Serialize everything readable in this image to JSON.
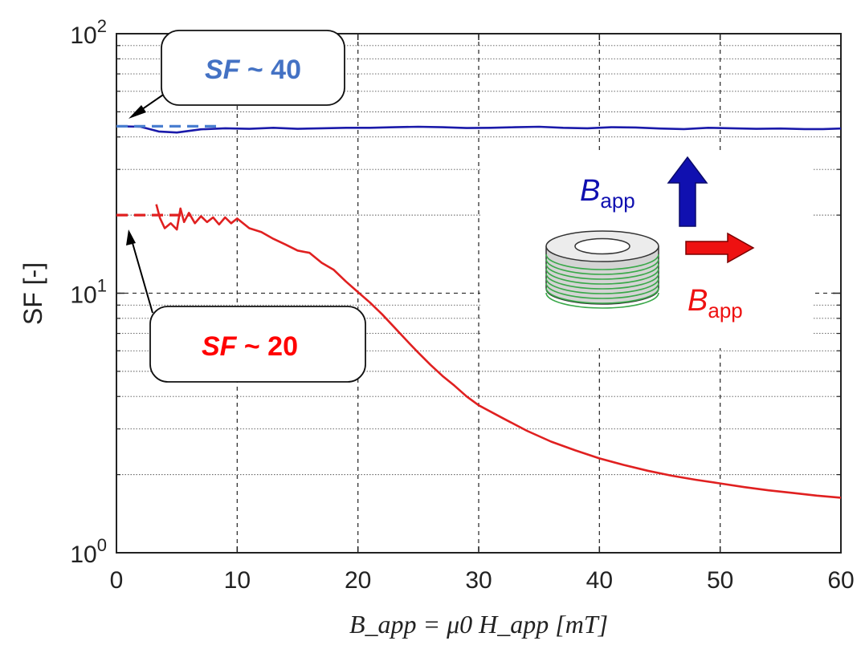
{
  "chart_data": {
    "type": "line",
    "xlabel": "B_app = μ0 H_app [mT]",
    "ylabel": "SF [-]",
    "xlim": [
      0,
      60
    ],
    "ylim": [
      1,
      100
    ],
    "y_scale": "log",
    "grid": true,
    "x_ticks": [
      "0",
      "10",
      "20",
      "30",
      "40",
      "50",
      "60"
    ],
    "y_ticks": [
      {
        "base": "10",
        "exp": "0"
      },
      {
        "base": "10",
        "exp": "1"
      },
      {
        "base": "10",
        "exp": "2"
      }
    ],
    "series": [
      {
        "color": "#1a1aaa",
        "x": [
          0,
          2,
          3.5,
          5,
          7,
          9,
          11,
          13,
          15,
          17,
          19,
          21,
          23,
          25,
          27,
          29,
          31,
          33,
          35,
          37,
          39,
          41,
          43,
          45,
          47,
          49,
          51,
          53,
          55,
          57,
          58.5,
          60
        ],
        "y": [
          44,
          43.8,
          42,
          41.6,
          42.8,
          43.2,
          43.0,
          43.4,
          43.0,
          43.2,
          43.4,
          43.4,
          43.6,
          43.8,
          43.6,
          43.3,
          43.4,
          43.6,
          43.8,
          43.4,
          43.2,
          43.6,
          43.5,
          43.1,
          42.9,
          43.4,
          43.2,
          43.0,
          43.1,
          42.9,
          42.9,
          43.1
        ]
      },
      {
        "color": "#e02020",
        "x": [
          3.3,
          3.6,
          4.0,
          4.5,
          5.0,
          5.3,
          5.6,
          6.0,
          6.5,
          7.0,
          7.5,
          8,
          8.5,
          9,
          9.5,
          10,
          11,
          12,
          13,
          14,
          15,
          16,
          17,
          18,
          19,
          20,
          21,
          22,
          23,
          24,
          25,
          26,
          27,
          28,
          29,
          30,
          32,
          34,
          36,
          38,
          40,
          42,
          44,
          46,
          48,
          50,
          52,
          54,
          56,
          58,
          60
        ],
        "y": [
          22.0,
          19.5,
          17.8,
          18.6,
          17.6,
          21.2,
          18.8,
          20.4,
          18.6,
          19.8,
          18.8,
          19.6,
          18.4,
          19.6,
          18.6,
          19.4,
          17.8,
          17.2,
          16.2,
          15.4,
          14.6,
          14.3,
          13.1,
          12.3,
          11.1,
          10.1,
          9.2,
          8.3,
          7.4,
          6.6,
          5.9,
          5.3,
          4.8,
          4.4,
          4.0,
          3.7,
          3.3,
          2.95,
          2.68,
          2.48,
          2.31,
          2.18,
          2.07,
          1.98,
          1.91,
          1.85,
          1.79,
          1.74,
          1.7,
          1.66,
          1.63
        ]
      }
    ],
    "reference_lines": [
      {
        "color": "#4a7fd0",
        "x": [
          0,
          8.5
        ],
        "y": 44
      },
      {
        "color": "#e02020",
        "x": [
          0,
          6.2
        ],
        "y": 20
      }
    ],
    "annotations": [
      {
        "italic": "SF",
        "text": " ~ 40",
        "color": "#4472c4",
        "points_to": [
          0,
          44
        ]
      },
      {
        "italic": "SF",
        "text": " ~ 20",
        "color": "#ff0000",
        "points_to": [
          0.7,
          19.8
        ]
      },
      {
        "main": "B",
        "sub": "app",
        "color": "#1010b0",
        "arrow": "up"
      },
      {
        "main": "B",
        "sub": "app",
        "color": "#ee1111",
        "arrow": "right"
      }
    ]
  }
}
